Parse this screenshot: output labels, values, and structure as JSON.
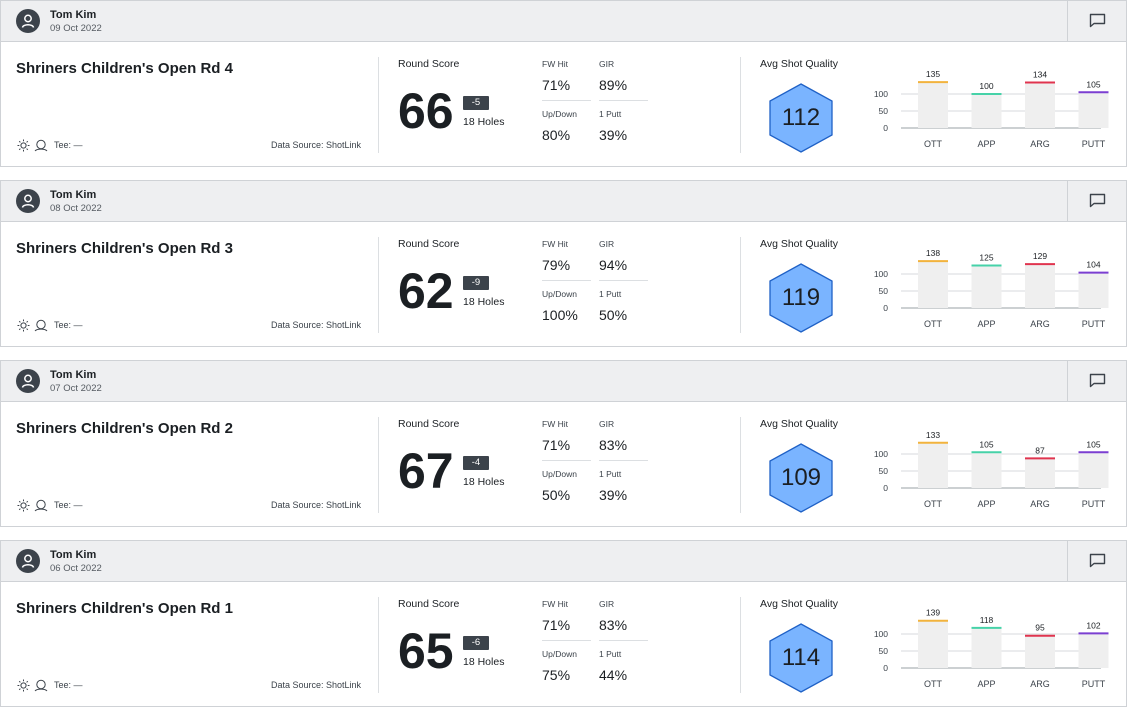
{
  "colors": {
    "ott": "#f2b33d",
    "app": "#46d2a8",
    "arg": "#e0344f",
    "putt": "#7b3fd1",
    "hex_fill": "#7ab4ff",
    "hex_stroke": "#1f61c6"
  },
  "labels": {
    "round_score": "Round Score",
    "fw_hit": "FW Hit",
    "gir": "GIR",
    "up_down": "Up/Down",
    "one_putt": "1 Putt",
    "avg_shot_quality": "Avg Shot Quality",
    "tee": "Tee: —",
    "data_source": "Data Source: ShotLink"
  },
  "icons": [
    "user-icon",
    "comment-icon",
    "sun-icon",
    "course-icon"
  ],
  "chart_axis": {
    "ticks": [
      "100",
      "50",
      "0"
    ],
    "ylim": [
      0,
      160
    ]
  },
  "rounds": [
    {
      "player": "Tom Kim",
      "date": "09 Oct 2022",
      "title": "Shriners Children's Open Rd 4",
      "score": "66",
      "to_par": "-5",
      "holes": "18 Holes",
      "fw_hit": "71%",
      "gir": "89%",
      "up_down": "80%",
      "one_putt": "39%",
      "avg_sq": "112",
      "chart_data": {
        "type": "bar",
        "categories": [
          "OTT",
          "APP",
          "ARG",
          "PUTT"
        ],
        "values": [
          135,
          100,
          134,
          105
        ],
        "ylim": [
          0,
          160
        ],
        "yticks": [
          0,
          50,
          100
        ]
      }
    },
    {
      "player": "Tom Kim",
      "date": "08 Oct 2022",
      "title": "Shriners Children's Open Rd 3",
      "score": "62",
      "to_par": "-9",
      "holes": "18 Holes",
      "fw_hit": "79%",
      "gir": "94%",
      "up_down": "100%",
      "one_putt": "50%",
      "avg_sq": "119",
      "chart_data": {
        "type": "bar",
        "categories": [
          "OTT",
          "APP",
          "ARG",
          "PUTT"
        ],
        "values": [
          138,
          125,
          129,
          104
        ],
        "ylim": [
          0,
          160
        ],
        "yticks": [
          0,
          50,
          100
        ]
      }
    },
    {
      "player": "Tom Kim",
      "date": "07 Oct 2022",
      "title": "Shriners Children's Open Rd 2",
      "score": "67",
      "to_par": "-4",
      "holes": "18 Holes",
      "fw_hit": "71%",
      "gir": "83%",
      "up_down": "50%",
      "one_putt": "39%",
      "avg_sq": "109",
      "chart_data": {
        "type": "bar",
        "categories": [
          "OTT",
          "APP",
          "ARG",
          "PUTT"
        ],
        "values": [
          133,
          105,
          87,
          105
        ],
        "ylim": [
          0,
          160
        ],
        "yticks": [
          0,
          50,
          100
        ]
      }
    },
    {
      "player": "Tom Kim",
      "date": "06 Oct 2022",
      "title": "Shriners Children's Open Rd 1",
      "score": "65",
      "to_par": "-6",
      "holes": "18 Holes",
      "fw_hit": "71%",
      "gir": "83%",
      "up_down": "75%",
      "one_putt": "44%",
      "avg_sq": "114",
      "chart_data": {
        "type": "bar",
        "categories": [
          "OTT",
          "APP",
          "ARG",
          "PUTT"
        ],
        "values": [
          139,
          118,
          95,
          102
        ],
        "ylim": [
          0,
          160
        ],
        "yticks": [
          0,
          50,
          100
        ]
      }
    }
  ]
}
